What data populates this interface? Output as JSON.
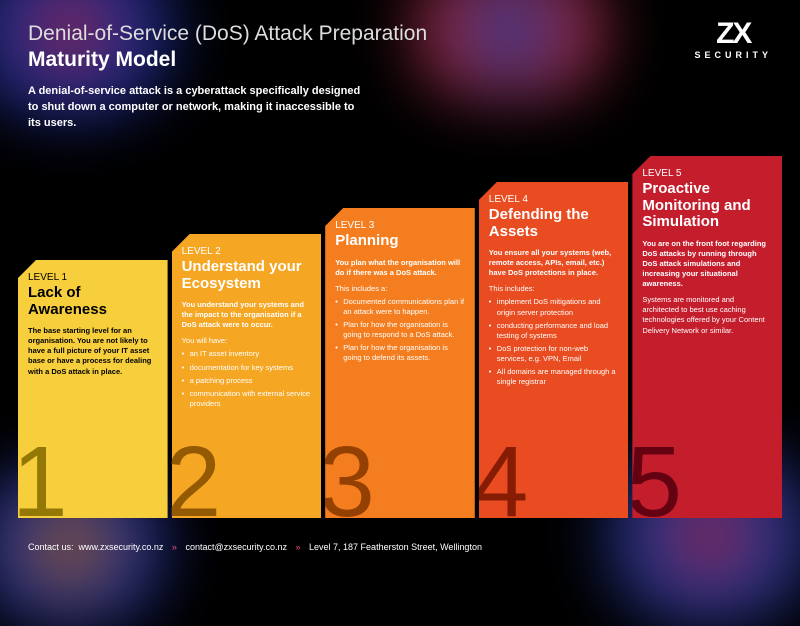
{
  "header": {
    "title1": "Denial-of-Service (DoS) Attack Preparation",
    "title2": "Maturity Model",
    "subtitle": "A denial-of-service attack is a cyberattack specifically designed to shut down a computer or network, making it inaccessible to its users."
  },
  "logo": {
    "mark": "ZX",
    "sub": "SECURITY"
  },
  "cards": {
    "heights": [
      258,
      284,
      310,
      336,
      362
    ],
    "colors": [
      "#f7cf3c",
      "#f5a623",
      "#f47e1f",
      "#e84c20",
      "#c41e2d"
    ],
    "num_colors": [
      "#8a6f00",
      "#8a5200",
      "#8a3a00",
      "#7a1800",
      "#5a0010"
    ],
    "items": [
      {
        "level": "LEVEL 1",
        "title": "Lack of Awareness",
        "lead": "The base starting level for an organisation. You are not likely to have a full picture of your IT asset base or have a process for dealing with a DoS attack in place.",
        "num": "1"
      },
      {
        "level": "LEVEL 2",
        "title": "Understand your Ecosystem",
        "lead": "You understand your systems and the impact to the organisation if a DoS attack were to occur.",
        "subhead": "You will have:",
        "bullets": [
          "an IT asset inventory",
          "documentation for key systems",
          "a patching process",
          "communication with external service providers"
        ],
        "num": "2"
      },
      {
        "level": "LEVEL 3",
        "title": "Planning",
        "lead": "You plan what the organisation will do if there was a DoS attack.",
        "subhead": "This includes a:",
        "bullets": [
          "Documented communications plan if an attack were to happen.",
          "Plan for how the organisation is going to respond to a DoS attack.",
          "Plan for how the organisation is going to defend its assets."
        ],
        "num": "3"
      },
      {
        "level": "LEVEL 4",
        "title": "Defending the Assets",
        "lead": "You ensure all your systems (web, remote access, APIs, email, etc.) have DoS protections in place.",
        "subhead": "This includes:",
        "bullets": [
          "implement DoS mitigations and origin server protection",
          "conducting performance and load testing of systems",
          "DoS protection for non-web services, e.g. VPN, Email",
          "All domains are managed through a single registrar"
        ],
        "num": "4"
      },
      {
        "level": "LEVEL 5",
        "title": "Proactive Monitoring and Simulation",
        "lead": "You are on the front foot regarding DoS attacks by running through DoS attack simulations and increasing your situational awareness.",
        "extra": "Systems are monitored and architected to best use caching technologies offered by your Content Delivery Network or similar.",
        "num": "5"
      }
    ]
  },
  "footer": {
    "prefix": "Contact us:",
    "site": "www.zxsecurity.co.nz",
    "email": "contact@zxsecurity.co.nz",
    "address": "Level 7, 187 Featherston Street, Wellington"
  }
}
